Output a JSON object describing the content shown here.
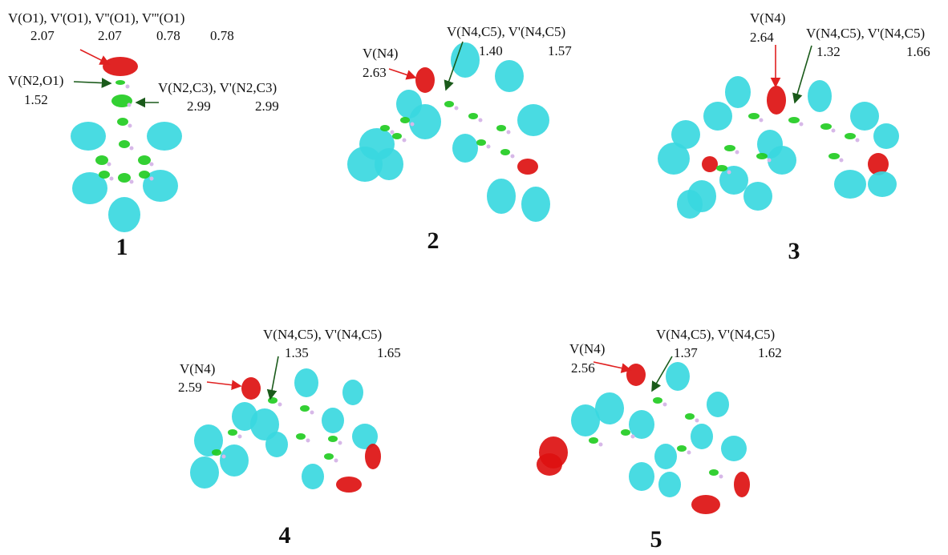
{
  "panels": [
    {
      "label": "1",
      "annotations": [
        {
          "text": "V(O1), V'(O1), V''(O1), V'''(O1)",
          "values": [
            "2.07",
            "2.07",
            "0.78",
            "0.78"
          ]
        },
        {
          "text": "V(N2,O1)",
          "values": [
            "1.52"
          ]
        },
        {
          "text": "V(N2,C3), V'(N2,C3)",
          "values": [
            "2.99",
            "2.99"
          ]
        }
      ]
    },
    {
      "label": "2",
      "annotations": [
        {
          "text": "V(N4)",
          "values": [
            "2.63"
          ]
        },
        {
          "text": "V(N4,C5), V'(N4,C5)",
          "values": [
            "1.40",
            "1.57"
          ]
        }
      ]
    },
    {
      "label": "3",
      "annotations": [
        {
          "text": "V(N4)",
          "values": [
            "2.64"
          ]
        },
        {
          "text": "V(N4,C5), V'(N4,C5)",
          "values": [
            "1.32",
            "1.66"
          ]
        }
      ]
    },
    {
      "label": "4",
      "annotations": [
        {
          "text": "V(N4)",
          "values": [
            "2.59"
          ]
        },
        {
          "text": "V(N4,C5), V'(N4,C5)",
          "values": [
            "1.35",
            "1.65"
          ]
        }
      ]
    },
    {
      "label": "5",
      "annotations": [
        {
          "text": "V(N4)",
          "values": [
            "2.56"
          ]
        },
        {
          "text": "V(N4,C5), V'(N4,C5)",
          "values": [
            "1.37",
            "1.62"
          ]
        }
      ]
    }
  ]
}
